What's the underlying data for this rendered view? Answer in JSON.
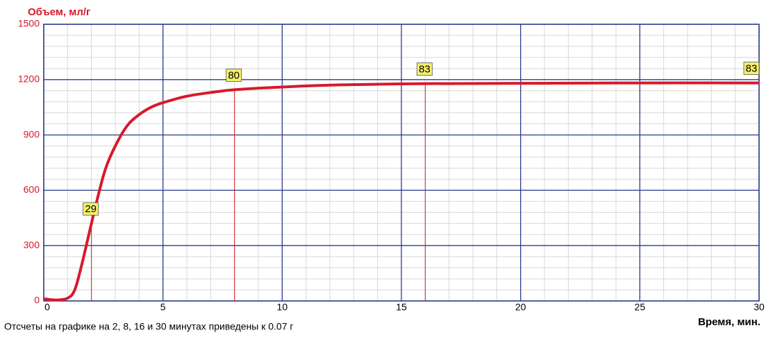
{
  "chart_data": {
    "type": "line",
    "ylabel": "Объем, мл/г",
    "xlabel": "Время, мин.",
    "note": "Отсчеты на графике на 2, 8, 16 и 30 минутах приведены к 0.07 г",
    "x": [
      0,
      0.5,
      1,
      1.3,
      1.6,
      2,
      2.3,
      2.6,
      3,
      3.5,
      4,
      4.5,
      5,
      6,
      7,
      8,
      10,
      12,
      14,
      16,
      20,
      25,
      30
    ],
    "values": [
      12,
      5,
      15,
      60,
      200,
      420,
      580,
      720,
      840,
      950,
      1010,
      1050,
      1075,
      1110,
      1130,
      1145,
      1160,
      1170,
      1175,
      1178,
      1180,
      1182,
      1182
    ],
    "color": "#d7192a",
    "xlim": [
      0,
      30
    ],
    "xticks": [
      0,
      5,
      10,
      15,
      20,
      25,
      30
    ],
    "ylim": [
      0,
      1500
    ],
    "yticks": [
      0,
      300,
      600,
      900,
      1200,
      1500
    ],
    "minor_grid": {
      "x_step": 1,
      "y_step": 60
    },
    "grid": true,
    "annotations": [
      {
        "x": 2,
        "y": 420,
        "label": "29"
      },
      {
        "x": 8,
        "y": 1145,
        "label": "80"
      },
      {
        "x": 16,
        "y": 1178,
        "label": "83"
      },
      {
        "x": 30,
        "y": 1182,
        "label": "83"
      }
    ]
  }
}
